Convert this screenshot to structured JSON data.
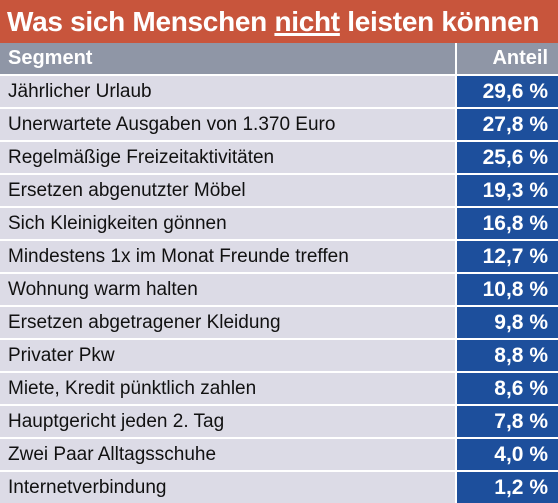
{
  "title": {
    "part1": "Was sich Menschen ",
    "emphasis": "nicht",
    "part2": " leisten können"
  },
  "colors": {
    "title_bg": "#c8553c",
    "header_bg": "#8f96a6",
    "segment_bg": "#dcdbe6",
    "value_bg": "#1d4f9c"
  },
  "chart_data": {
    "type": "table",
    "columns": [
      "Segment",
      "Anteil"
    ],
    "rows": [
      {
        "segment": "Jährlicher Urlaub",
        "value": 29.6,
        "label": "29,6 %"
      },
      {
        "segment": "Unerwartete Ausgaben von 1.370 Euro",
        "value": 27.8,
        "label": "27,8 %"
      },
      {
        "segment": "Regelmäßige Freizeitaktivitäten",
        "value": 25.6,
        "label": "25,6 %"
      },
      {
        "segment": "Ersetzen abgenutzter Möbel",
        "value": 19.3,
        "label": "19,3 %"
      },
      {
        "segment": "Sich Kleinigkeiten gönnen",
        "value": 16.8,
        "label": "16,8 %"
      },
      {
        "segment": "Mindestens 1x im Monat Freunde treffen",
        "value": 12.7,
        "label": "12,7 %"
      },
      {
        "segment": "Wohnung warm halten",
        "value": 10.8,
        "label": "10,8 %"
      },
      {
        "segment": "Ersetzen abgetragener Kleidung",
        "value": 9.8,
        "label": "9,8 %"
      },
      {
        "segment": "Privater Pkw",
        "value": 8.8,
        "label": "8,8 %"
      },
      {
        "segment": "Miete, Kredit pünktlich zahlen",
        "value": 8.6,
        "label": "8,6 %"
      },
      {
        "segment": "Hauptgericht jeden 2. Tag",
        "value": 7.8,
        "label": "7,8 %"
      },
      {
        "segment": "Zwei Paar Alltagsschuhe",
        "value": 4.0,
        "label": "4,0 %"
      },
      {
        "segment": "Internetverbindung",
        "value": 1.2,
        "label": "1,2 %"
      }
    ]
  }
}
